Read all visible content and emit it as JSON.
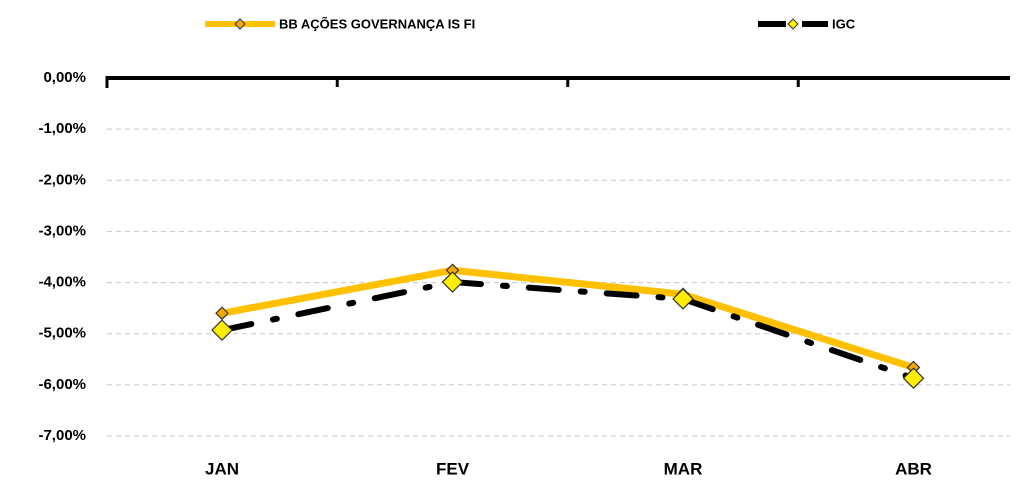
{
  "chart_data": {
    "type": "line",
    "categories": [
      "JAN",
      "FEV",
      "MAR",
      "ABR"
    ],
    "series": [
      {
        "name": "BB AÇÕES GOVERNANÇA IS FI",
        "color": "#ffc000",
        "marker_color": "#f5a800",
        "values": [
          -4.6,
          -3.76,
          -4.23,
          -5.66
        ]
      },
      {
        "name": "IGC",
        "color": "#000000",
        "marker_color": "#ffee00",
        "values": [
          -4.93,
          -3.99,
          -4.32,
          -5.87
        ]
      }
    ],
    "ylim": [
      -7,
      0
    ],
    "yticks": [
      {
        "value": 0,
        "label": "0,00%"
      },
      {
        "value": -1,
        "label": "-1,00%"
      },
      {
        "value": -2,
        "label": "-2,00%"
      },
      {
        "value": -3,
        "label": "-3,00%"
      },
      {
        "value": -4,
        "label": "-4,00%"
      },
      {
        "value": -5,
        "label": "-5,00%"
      },
      {
        "value": -6,
        "label": "-6,00%"
      },
      {
        "value": -7,
        "label": "-7,00%"
      }
    ],
    "grid": true,
    "legend": "top"
  }
}
